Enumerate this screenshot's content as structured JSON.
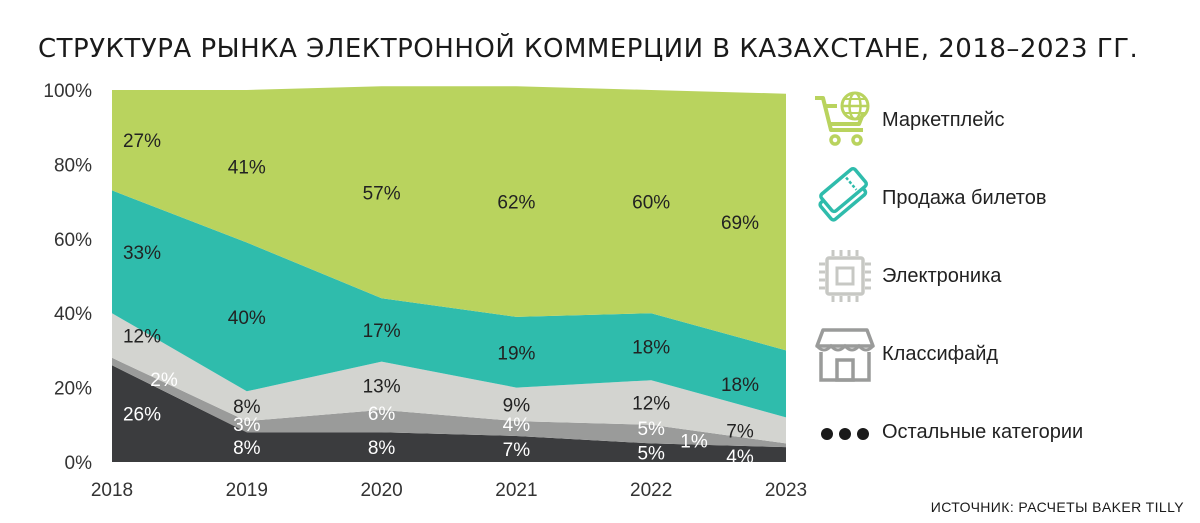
{
  "title": "СТРУКТУРА РЫНКА ЭЛЕКТРОННОЙ КОММЕРЦИИ В КАЗАХСТАНЕ, 2018–2023 ГГ.",
  "source": "ИСТОЧНИК: РАСЧЕТЫ BAKER TILLY",
  "colors": {
    "marketplace": "#b9d35e",
    "tickets": "#2fbcac",
    "electronics": "#d3d4d0",
    "classifieds": "#9a9b9a",
    "other": "#3b3c3e"
  },
  "legend": [
    {
      "label": "Маркетплейс",
      "icon": "shopping-cart-globe-icon"
    },
    {
      "label": "Продажа билетов",
      "icon": "tickets-icon"
    },
    {
      "label": "Электроника",
      "icon": "microchip-icon"
    },
    {
      "label": "Классифайд",
      "icon": "storefront-icon"
    },
    {
      "label": "Остальные категории",
      "icon": "dots-icon"
    }
  ],
  "chart_data": {
    "type": "area",
    "stacked": true,
    "title": "СТРУКТУРА РЫНКА ЭЛЕКТРОННОЙ КОММЕРЦИИ В КАЗАХСТАНЕ, 2018–2023 ГГ.",
    "x": [
      "2018",
      "2019",
      "2020",
      "2021",
      "2022",
      "2023"
    ],
    "ylim": [
      0,
      100
    ],
    "yticks": [
      "0%",
      "20%",
      "40%",
      "60%",
      "80%",
      "100%"
    ],
    "series": [
      {
        "name": "Остальные категории",
        "values": [
          26,
          8,
          8,
          7,
          5,
          4
        ],
        "labels": [
          "26%",
          "8%",
          "8%",
          "7%",
          "5%",
          "4%"
        ]
      },
      {
        "name": "Классифайд",
        "values": [
          2,
          3,
          6,
          4,
          5,
          1
        ],
        "labels": [
          "2%",
          "3%",
          "6%",
          "4%",
          "5%",
          "1%"
        ]
      },
      {
        "name": "Электроника",
        "values": [
          12,
          8,
          13,
          9,
          12,
          7
        ],
        "labels": [
          "12%",
          "8%",
          "13%",
          "9%",
          "12%",
          "7%"
        ]
      },
      {
        "name": "Продажа билетов",
        "values": [
          33,
          40,
          17,
          19,
          18,
          18
        ],
        "labels": [
          "33%",
          "40%",
          "17%",
          "19%",
          "18%",
          "18%"
        ]
      },
      {
        "name": "Маркетплейс",
        "values": [
          27,
          41,
          57,
          62,
          60,
          69
        ],
        "labels": [
          "27%",
          "41%",
          "57%",
          "62%",
          "60%",
          "69%"
        ]
      }
    ],
    "legend_position": "right",
    "grid": false
  }
}
